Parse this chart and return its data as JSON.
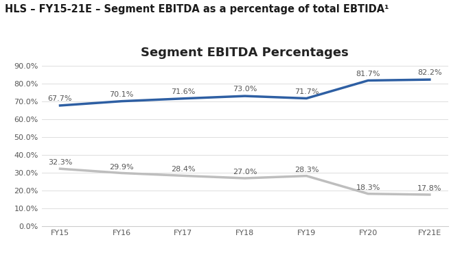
{
  "title": "Segment EBITDA Percentages",
  "header": "HLS – FY15-21E – Segment EBITDA as a percentage of total EBTIDA¹",
  "categories": [
    "FY15",
    "FY16",
    "FY17",
    "FY18",
    "FY19",
    "FY20",
    "FY21E"
  ],
  "pathology": [
    67.7,
    70.1,
    71.6,
    73.0,
    71.7,
    81.7,
    82.2
  ],
  "imaging": [
    32.3,
    29.9,
    28.4,
    27.0,
    28.3,
    18.3,
    17.8
  ],
  "pathology_color": "#2E5FA3",
  "imaging_color": "#BEBEBE",
  "ylim": [
    0,
    90
  ],
  "yticks": [
    0.0,
    10.0,
    20.0,
    30.0,
    40.0,
    50.0,
    60.0,
    70.0,
    80.0,
    90.0
  ],
  "background_color": "#FFFFFF",
  "header_fontsize": 10.5,
  "title_fontsize": 13,
  "label_fontsize": 8,
  "tick_fontsize": 8,
  "legend_fontsize": 8.5,
  "line_width": 2.5
}
